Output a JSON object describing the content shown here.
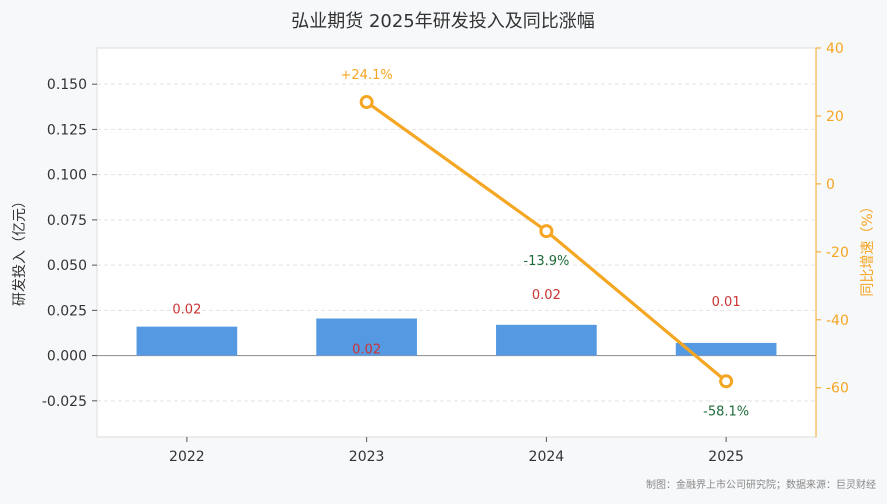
{
  "chart_data": {
    "type": "bar",
    "title": "弘业期货 2025年研发投入及同比涨幅",
    "categories": [
      "2022",
      "2023",
      "2024",
      "2025"
    ],
    "y_left": {
      "label": "研发投入（亿元）",
      "ticks": [
        "-0.025",
        "0.000",
        "0.025",
        "0.050",
        "0.075",
        "0.100",
        "0.125",
        "0.150"
      ],
      "lim": [
        -0.045,
        0.17
      ]
    },
    "y_right": {
      "label": "同比增速（%）",
      "ticks": [
        "-60",
        "-40",
        "-20",
        "0",
        "20",
        "40"
      ],
      "lim": [
        -74.5,
        40
      ]
    },
    "series": [
      {
        "type": "bar",
        "axis": "left",
        "values": [
          0.016,
          0.0205,
          0.017,
          0.007
        ],
        "labels": [
          "0.02",
          "0.02",
          "0.02",
          "0.01"
        ],
        "color": "#5599e2"
      },
      {
        "type": "line",
        "axis": "right",
        "values": [
          null,
          24.1,
          -13.9,
          -58.1
        ],
        "labels": [
          "",
          "+24.1%",
          "-13.9%",
          "-58.1%"
        ],
        "color": "#f5a623"
      }
    ],
    "grid": true,
    "source_note": "制图：金融界上市公司研究院；数据来源：巨灵财经"
  }
}
